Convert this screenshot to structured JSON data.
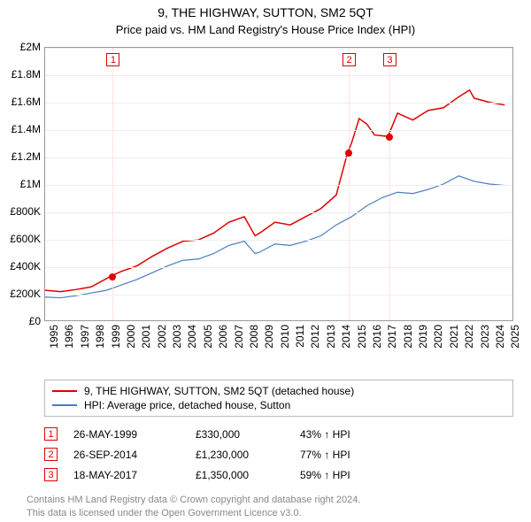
{
  "title": "9, THE HIGHWAY, SUTTON, SM2 5QT",
  "subtitle": "Price paid vs. HM Land Registry's House Price Index (HPI)",
  "chart": {
    "type": "line",
    "background_color": "#ffffff",
    "grid_color": "#eeeeee",
    "border_color": "#999999",
    "x": {
      "min": 1995,
      "max": 2025.5,
      "ticks": [
        1995,
        1996,
        1997,
        1998,
        1999,
        2000,
        2001,
        2002,
        2003,
        2004,
        2005,
        2006,
        2007,
        2008,
        2009,
        2010,
        2011,
        2012,
        2013,
        2014,
        2015,
        2016,
        2017,
        2018,
        2019,
        2020,
        2021,
        2022,
        2023,
        2024,
        2025
      ]
    },
    "y": {
      "min": 0,
      "max": 2000000,
      "tick_step": 200000,
      "labels": [
        "£0",
        "£200K",
        "£400K",
        "£600K",
        "£800K",
        "£1M",
        "£1.2M",
        "£1.4M",
        "£1.6M",
        "£1.8M",
        "£2M"
      ]
    },
    "series": [
      {
        "name": "9, THE HIGHWAY, SUTTON, SM2 5QT (detached house)",
        "color": "#e00000",
        "line_width": 1.5,
        "points": [
          [
            1995,
            220000
          ],
          [
            1996,
            210000
          ],
          [
            1997,
            225000
          ],
          [
            1998,
            245000
          ],
          [
            1999.4,
            330000
          ],
          [
            2000,
            360000
          ],
          [
            2001,
            400000
          ],
          [
            2002,
            470000
          ],
          [
            2003,
            530000
          ],
          [
            2004,
            580000
          ],
          [
            2005,
            590000
          ],
          [
            2006,
            640000
          ],
          [
            2007,
            720000
          ],
          [
            2008,
            760000
          ],
          [
            2008.7,
            620000
          ],
          [
            2009,
            640000
          ],
          [
            2010,
            720000
          ],
          [
            2011,
            700000
          ],
          [
            2012,
            760000
          ],
          [
            2013,
            820000
          ],
          [
            2014,
            920000
          ],
          [
            2014.74,
            1230000
          ],
          [
            2015,
            1300000
          ],
          [
            2015.5,
            1480000
          ],
          [
            2016,
            1440000
          ],
          [
            2016.5,
            1360000
          ],
          [
            2017.38,
            1350000
          ],
          [
            2018,
            1520000
          ],
          [
            2019,
            1470000
          ],
          [
            2020,
            1540000
          ],
          [
            2021,
            1560000
          ],
          [
            2022,
            1640000
          ],
          [
            2022.7,
            1690000
          ],
          [
            2023,
            1630000
          ],
          [
            2024,
            1600000
          ],
          [
            2025,
            1580000
          ]
        ]
      },
      {
        "name": "HPI: Average price, detached house, Sutton",
        "color": "#4a7ebb",
        "line_width": 1.2,
        "points": [
          [
            1995,
            170000
          ],
          [
            1996,
            165000
          ],
          [
            1997,
            180000
          ],
          [
            1998,
            200000
          ],
          [
            1999,
            220000
          ],
          [
            2000,
            260000
          ],
          [
            2001,
            300000
          ],
          [
            2002,
            350000
          ],
          [
            2003,
            400000
          ],
          [
            2004,
            440000
          ],
          [
            2005,
            450000
          ],
          [
            2006,
            490000
          ],
          [
            2007,
            550000
          ],
          [
            2008,
            580000
          ],
          [
            2008.7,
            490000
          ],
          [
            2009,
            500000
          ],
          [
            2010,
            560000
          ],
          [
            2011,
            550000
          ],
          [
            2012,
            580000
          ],
          [
            2013,
            620000
          ],
          [
            2014,
            700000
          ],
          [
            2015,
            760000
          ],
          [
            2016,
            840000
          ],
          [
            2017,
            900000
          ],
          [
            2018,
            940000
          ],
          [
            2019,
            930000
          ],
          [
            2020,
            960000
          ],
          [
            2021,
            1000000
          ],
          [
            2022,
            1060000
          ],
          [
            2023,
            1020000
          ],
          [
            2024,
            1000000
          ],
          [
            2025,
            990000
          ]
        ]
      }
    ],
    "sale_markers": [
      {
        "num": "1",
        "x": 1999.4,
        "y": 330000,
        "line_color": "#ffcccc"
      },
      {
        "num": "2",
        "x": 2014.74,
        "y": 1230000,
        "line_color": "#ffcccc"
      },
      {
        "num": "3",
        "x": 2017.38,
        "y": 1350000,
        "line_color": "#ffcccc"
      }
    ]
  },
  "legend": [
    {
      "color": "#e00000",
      "label": "9, THE HIGHWAY, SUTTON, SM2 5QT (detached house)"
    },
    {
      "color": "#4a7ebb",
      "label": "HPI: Average price, detached house, Sutton"
    }
  ],
  "sales": [
    {
      "num": "1",
      "date": "26-MAY-1999",
      "price": "£330,000",
      "pct": "43% ↑ HPI"
    },
    {
      "num": "2",
      "date": "26-SEP-2014",
      "price": "£1,230,000",
      "pct": "77% ↑ HPI"
    },
    {
      "num": "3",
      "date": "18-MAY-2017",
      "price": "£1,350,000",
      "pct": "59% ↑ HPI"
    }
  ],
  "footer": {
    "line1": "Contains HM Land Registry data © Crown copyright and database right 2024.",
    "line2": "This data is licensed under the Open Government Licence v3.0."
  }
}
